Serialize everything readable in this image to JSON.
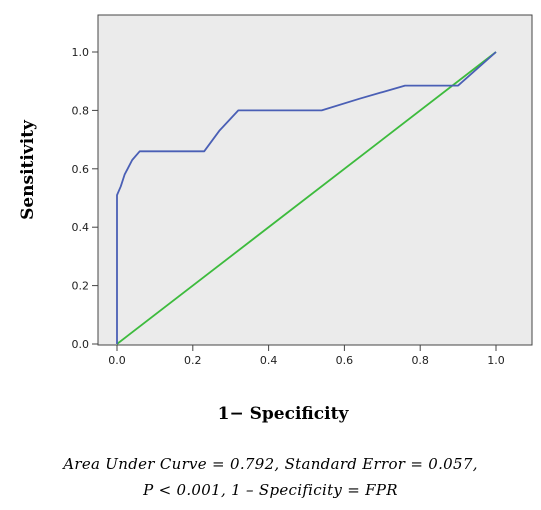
{
  "chart_data": {
    "type": "line",
    "xlabel": "1− Specificity",
    "ylabel": "Sensitivity",
    "xlim": [
      0.0,
      1.0
    ],
    "ylim": [
      0.0,
      1.0
    ],
    "xticks": [
      "0.0",
      "0.2",
      "0.4",
      "0.6",
      "0.8",
      "1.0"
    ],
    "yticks": [
      "0.0",
      "0.2",
      "0.4",
      "0.6",
      "0.8",
      "1.0"
    ],
    "grid": false,
    "legend": "none",
    "background": "#ebebeb",
    "series": [
      {
        "color": "#4a5fb5",
        "x": [
          0.0,
          0.0,
          0.01,
          0.02,
          0.04,
          0.06,
          0.23,
          0.27,
          0.32,
          0.54,
          0.64,
          0.76,
          0.9,
          1.0
        ],
        "y": [
          0.0,
          0.51,
          0.54,
          0.58,
          0.63,
          0.66,
          0.66,
          0.73,
          0.8,
          0.8,
          0.84,
          0.885,
          0.885,
          1.0
        ]
      },
      {
        "color": "#3dbb3d",
        "x": [
          0.0,
          1.0
        ],
        "y": [
          0.0,
          1.0
        ]
      }
    ]
  },
  "caption": {
    "line1": "Area Under Curve = 0.792, Standard Error = 0.057,",
    "line2": "P < 0.001, 1 – Specificity = FPR"
  }
}
